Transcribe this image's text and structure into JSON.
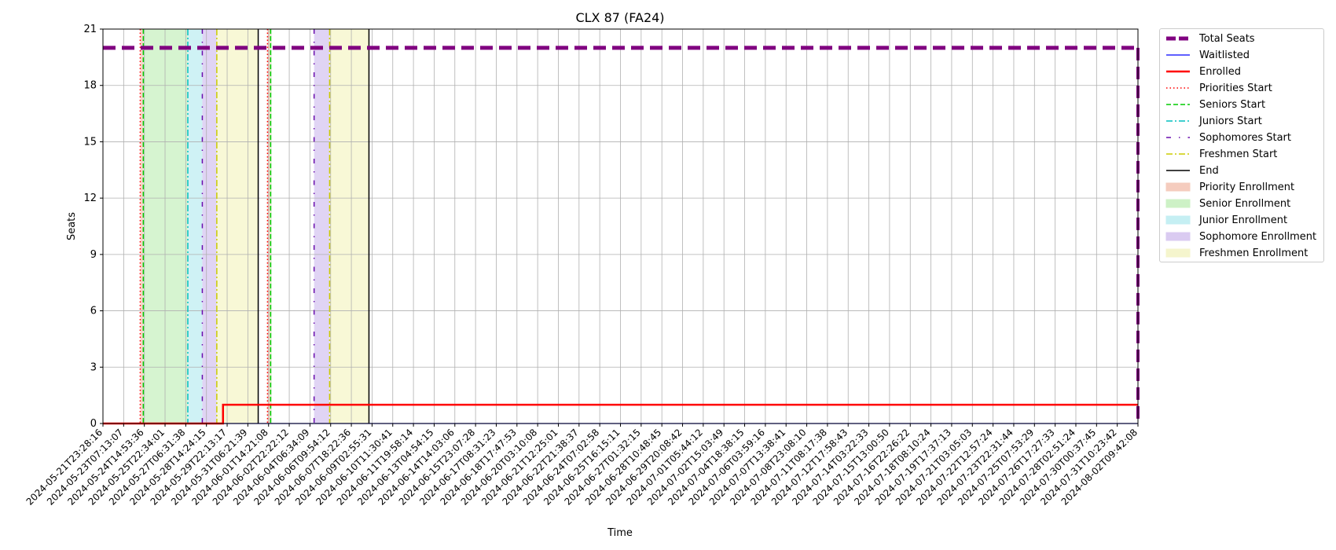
{
  "chart_data": {
    "type": "line",
    "title": "CLX 87 (FA24)",
    "xlabel": "Time",
    "ylabel": "Seats",
    "ylim": [
      0,
      21
    ],
    "yticks": [
      0,
      3,
      6,
      9,
      12,
      15,
      18,
      21
    ],
    "grid": true,
    "legend_placement": "outside-right",
    "x_tick_labels": [
      "2024-05-21T23:28:16",
      "2024-05-23T07:13:07",
      "2024-05-24T14:53:36",
      "2024-05-25T22:34:01",
      "2024-05-27T06:31:38",
      "2024-05-28T14:24:15",
      "2024-05-29T22:13:17",
      "2024-05-31T06:21:39",
      "2024-06-01T14:21:08",
      "2024-06-02T22:22:12",
      "2024-06-04T06:34:09",
      "2024-06-06T09:54:12",
      "2024-06-07T18:22:36",
      "2024-06-09T02:55:31",
      "2024-06-10T11:30:41",
      "2024-06-11T19:58:14",
      "2024-06-13T04:54:15",
      "2024-06-14T14:03:06",
      "2024-06-15T23:07:28",
      "2024-06-17T08:31:23",
      "2024-06-18T17:47:53",
      "2024-06-20T03:10:08",
      "2024-06-21T12:25:01",
      "2024-06-22T21:38:37",
      "2024-06-24T07:02:58",
      "2024-06-25T16:15:11",
      "2024-06-27T01:32:15",
      "2024-06-28T10:48:45",
      "2024-06-29T20:08:42",
      "2024-07-01T05:44:12",
      "2024-07-02T15:03:49",
      "2024-07-04T18:38:15",
      "2024-07-06T03:59:16",
      "2024-07-07T13:38:41",
      "2024-07-08T23:08:10",
      "2024-07-11T08:17:38",
      "2024-07-12T17:58:43",
      "2024-07-14T03:22:33",
      "2024-07-15T13:00:50",
      "2024-07-16T22:26:22",
      "2024-07-18T08:10:24",
      "2024-07-19T17:37:13",
      "2024-07-21T03:05:03",
      "2024-07-22T12:57:24",
      "2024-07-23T22:31:44",
      "2024-07-25T07:53:29",
      "2024-07-26T17:27:33",
      "2024-07-28T02:51:24",
      "2024-07-30T00:37:45",
      "2024-07-31T10:23:42",
      "2024-08-02T09:42:08"
    ],
    "series": [
      {
        "name": "Total Seats",
        "color": "#800080",
        "style": "dashed-thick",
        "points": [
          [
            0,
            20
          ],
          [
            50,
            20
          ]
        ],
        "drop_at_end": [
          50,
          0
        ]
      },
      {
        "name": "Waitlisted",
        "color": "#0000ff",
        "style": "solid",
        "points": [
          [
            0,
            0
          ],
          [
            50,
            0
          ]
        ]
      },
      {
        "name": "Enrolled",
        "color": "#ff0000",
        "style": "solid-thick",
        "points": [
          [
            0,
            0
          ],
          [
            5.8,
            0
          ],
          [
            5.8,
            1
          ],
          [
            50,
            1
          ]
        ]
      }
    ],
    "event_lines": [
      {
        "name": "Priorities Start",
        "color": "#ff0000",
        "style": "dotted",
        "x": [
          1.8,
          7.95
        ]
      },
      {
        "name": "Seniors Start",
        "color": "#00cc00",
        "style": "dashed",
        "x": [
          1.95,
          8.1
        ]
      },
      {
        "name": "Juniors Start",
        "color": "#00bfbf",
        "style": "dashdot",
        "x": [
          4.1
        ]
      },
      {
        "name": "Sophomores Start",
        "color": "#6a0dad",
        "style": "loose-dashdot",
        "x": [
          4.8,
          10.2
        ]
      },
      {
        "name": "Freshmen Start",
        "color": "#cccc00",
        "style": "dashdot",
        "x": [
          5.5,
          10.95
        ]
      },
      {
        "name": "End",
        "color": "#000000",
        "style": "solid",
        "x": [
          7.5,
          12.85
        ]
      }
    ],
    "spans": [
      {
        "name": "Priority Enrollment",
        "color": "#f4c7b7",
        "ranges": [
          [
            1.8,
            1.95
          ],
          [
            7.95,
            8.1
          ]
        ]
      },
      {
        "name": "Senior Enrollment",
        "color": "#c8f0c0",
        "ranges": [
          [
            1.95,
            4.1
          ],
          [
            8.1,
            8.15
          ]
        ]
      },
      {
        "name": "Junior Enrollment",
        "color": "#bfeef2",
        "ranges": [
          [
            4.1,
            4.8
          ]
        ]
      },
      {
        "name": "Sophomore Enrollment",
        "color": "#d6c6f0",
        "ranges": [
          [
            4.8,
            5.5
          ],
          [
            10.2,
            10.95
          ]
        ]
      },
      {
        "name": "Freshmen Enrollment",
        "color": "#f5f5c8",
        "ranges": [
          [
            5.5,
            7.5
          ],
          [
            10.95,
            12.85
          ]
        ]
      }
    ],
    "legend": [
      "Total Seats",
      "Waitlisted",
      "Enrolled",
      "Priorities Start",
      "Seniors Start",
      "Juniors Start",
      "Sophomores Start",
      "Freshmen Start",
      "End",
      "Priority Enrollment",
      "Senior Enrollment",
      "Junior Enrollment",
      "Sophomore Enrollment",
      "Freshmen Enrollment"
    ]
  }
}
